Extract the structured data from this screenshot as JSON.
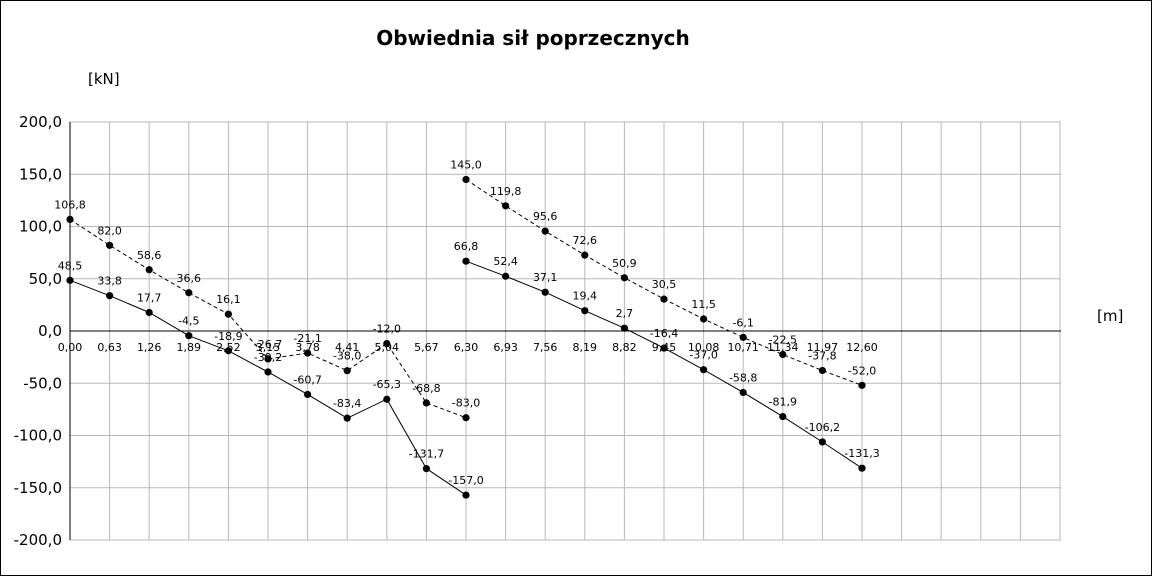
{
  "chart_data": {
    "type": "line",
    "title": "Obwiednia sił poprzecznych",
    "ylabel": "[kN]",
    "xlabel": "[m]",
    "ylim": [
      -200,
      200
    ],
    "yticks": [
      "200,0",
      "150,0",
      "100,0",
      "50,0",
      "0,0",
      "-50,0",
      "-100,0",
      "-150,0",
      "-200,0"
    ],
    "categories": [
      "0,00",
      "0,63",
      "1,26",
      "1,89",
      "2,52",
      "3,15",
      "3,78",
      "4,41",
      "5,04",
      "5,67",
      "6,30",
      "6,93",
      "7,56",
      "8,19",
      "8,82",
      "9,45",
      "10,08",
      "10,71",
      "11,34",
      "11,97",
      "12,60"
    ],
    "grid": true,
    "legend": "none",
    "series": [
      {
        "style": "dashed",
        "segments": [
          {
            "x": [
              0.0,
              0.63,
              1.26,
              1.89,
              2.52,
              3.15,
              3.78,
              4.41,
              5.04,
              5.67,
              6.3
            ],
            "values": [
              106.8,
              82.0,
              58.6,
              36.6,
              16.1,
              -26.7,
              -21.1,
              -38.0,
              -12.0,
              -68.8,
              -83.0
            ],
            "labels": [
              "106,8",
              "82,0",
              "58,6",
              "36,6",
              "16,1",
              "-26,7",
              "-21,1",
              "-38,0",
              "-12,0",
              "-68,8",
              "-83,0"
            ]
          },
          {
            "x": [
              6.3,
              6.93,
              7.56,
              8.19,
              8.82,
              9.45,
              10.08,
              10.71,
              11.34,
              11.97,
              12.6
            ],
            "values": [
              145.0,
              119.8,
              95.6,
              72.6,
              50.9,
              30.5,
              11.5,
              -6.1,
              -22.5,
              -37.8,
              -52.0
            ],
            "labels": [
              "145,0",
              "119,8",
              "95,6",
              "72,6",
              "50,9",
              "30,5",
              "11,5",
              "-6,1",
              "-22,5",
              "-37,8",
              "-52,0"
            ]
          }
        ]
      },
      {
        "style": "solid",
        "segments": [
          {
            "x": [
              0.0,
              0.63,
              1.26,
              1.89,
              2.52,
              3.15,
              3.78,
              4.41,
              5.04,
              5.67,
              6.3
            ],
            "values": [
              48.5,
              33.8,
              17.7,
              -4.5,
              -18.9,
              -39.2,
              -60.7,
              -83.4,
              -65.3,
              -131.7,
              -157.0
            ],
            "labels": [
              "48,5",
              "33,8",
              "17,7",
              "-4,5",
              "-18,9",
              "-39,2",
              "-60,7",
              "-83,4",
              "-65,3",
              "-131,7",
              "-157,0"
            ]
          },
          {
            "x": [
              6.3,
              6.93,
              7.56,
              8.19,
              8.82,
              9.45,
              10.08,
              10.71,
              11.34,
              11.97,
              12.6
            ],
            "values": [
              66.8,
              52.4,
              37.1,
              19.4,
              2.7,
              -16.4,
              -37.0,
              -58.8,
              -81.9,
              -106.2,
              -131.3
            ],
            "labels": [
              "66,8",
              "52,4",
              "37,1",
              "19,4",
              "2,7",
              "-16,4",
              "-37,0",
              "-58,8",
              "-81,9",
              "-106,2",
              "-131,3"
            ]
          }
        ]
      }
    ]
  }
}
